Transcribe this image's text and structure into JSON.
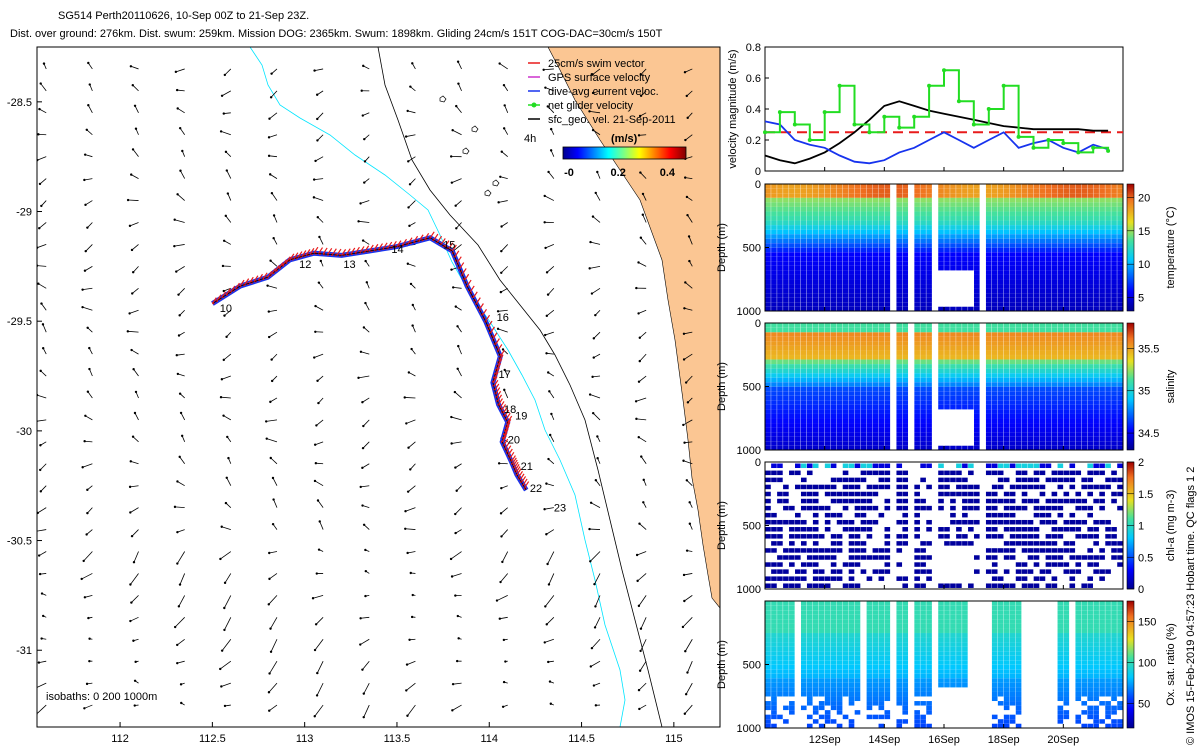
{
  "header": {
    "line1": "SG514 Perth20110626, 10-Sep 00Z to 21-Sep 23Z.",
    "line2": "Dist. over ground: 276km. Dist. swum: 259km. Mission DOG: 2365km. Swum: 1898km. Gliding 24cm/s 151T COG-DAC=30cm/s 150T"
  },
  "footer_vertical": "© IMOS 15-Feb-2019 04:57:23 Hobart time. QC flags 1  2",
  "colors": {
    "land": "#fbc693",
    "isobath_200": "#00e5ff",
    "isobath_1000": "#000000",
    "track_red": "#e81b1b",
    "track_blue": "#1733ee",
    "net_green": "#22dd22",
    "dashed_ref": "#e81b1b"
  },
  "chart_data": [
    {
      "type": "scatter",
      "name": "map",
      "xlim": [
        111.55,
        115.25
      ],
      "ylim": [
        -31.35,
        -28.25
      ],
      "x_ticks": [
        "112",
        "112.5",
        "113",
        "113.5",
        "114",
        "114.5",
        "115"
      ],
      "y_ticks": [
        "-28.5",
        "-29",
        "-29.5",
        "-30",
        "-30.5",
        "-31"
      ],
      "legend": [
        "25cm/s swim vector",
        "GPS surface velocity",
        "dive-avg current veloc.",
        "net glider velocity",
        "sfc_geo. vel. 21-Sep-2011"
      ],
      "legend_colors": [
        "#e81b1b",
        "#cc33cc",
        "#1733ee",
        "#22dd22",
        "#000000"
      ],
      "legend_placement": "top-right",
      "colorbar_title": "(m/s)",
      "colorbar_ticks": [
        "-0",
        "0.2",
        "0.4"
      ],
      "colorbar_range": [
        0,
        0.5
      ],
      "annotation_4h": "4h",
      "isobath_note": "isobaths: 0   200   1000m",
      "track": [
        [
          112.5,
          -29.42
        ],
        [
          112.65,
          -29.34
        ],
        [
          112.8,
          -29.3
        ],
        [
          112.92,
          -29.22
        ],
        [
          113.05,
          -29.19
        ],
        [
          113.2,
          -29.2
        ],
        [
          113.35,
          -29.18
        ],
        [
          113.5,
          -29.16
        ],
        [
          113.68,
          -29.12
        ],
        [
          113.8,
          -29.18
        ],
        [
          113.88,
          -29.34
        ],
        [
          113.98,
          -29.5
        ],
        [
          114.06,
          -29.66
        ],
        [
          114.02,
          -29.78
        ],
        [
          114.05,
          -29.88
        ],
        [
          114.1,
          -29.96
        ],
        [
          114.07,
          -30.05
        ],
        [
          114.12,
          -30.14
        ],
        [
          114.15,
          -30.2
        ],
        [
          114.2,
          -30.27
        ]
      ],
      "day_labels": [
        {
          "text": "10",
          "x": 112.54,
          "y": -29.44
        },
        {
          "text": "12",
          "x": 112.97,
          "y": -29.24
        },
        {
          "text": "13",
          "x": 113.21,
          "y": -29.24
        },
        {
          "text": "14",
          "x": 113.47,
          "y": -29.17
        },
        {
          "text": "15",
          "x": 113.75,
          "y": -29.15
        },
        {
          "text": "16",
          "x": 114.04,
          "y": -29.48
        },
        {
          "text": "17",
          "x": 114.05,
          "y": -29.74
        },
        {
          "text": "18",
          "x": 114.08,
          "y": -29.9
        },
        {
          "text": "19",
          "x": 114.14,
          "y": -29.93
        },
        {
          "text": "20",
          "x": 114.1,
          "y": -30.04
        },
        {
          "text": "21",
          "x": 114.17,
          "y": -30.16
        },
        {
          "text": "22",
          "x": 114.22,
          "y": -30.26
        },
        {
          "text": "23",
          "x": 114.35,
          "y": -30.35
        }
      ]
    },
    {
      "type": "line",
      "name": "velocity",
      "ylabel": "velocity magnitude (m/s)",
      "ylim": [
        0,
        0.8
      ],
      "y_ticks": [
        "0",
        "0.2",
        "0.4",
        "0.6",
        "0.8"
      ],
      "xlim": [
        10,
        22
      ],
      "ref_line": 0.25,
      "series": [
        {
          "name": "",
          "values": [
            0.1,
            0.07,
            0.05,
            0.08,
            0.12,
            0.18,
            0.25,
            0.33,
            0.42,
            0.45,
            0.42,
            0.39,
            0.37,
            0.35,
            0.33,
            0.31,
            0.29,
            0.28,
            0.27,
            0.27,
            0.27,
            0.27,
            0.26,
            0.26
          ]
        },
        {
          "name": "",
          "values": [
            0.32,
            0.3,
            0.2,
            0.17,
            0.15,
            0.1,
            0.06,
            0.05,
            0.07,
            0.12,
            0.15,
            0.2,
            0.25,
            0.2,
            0.15,
            0.2,
            0.25,
            0.15,
            0.18,
            0.2,
            0.15,
            0.12,
            0.17,
            0.14
          ]
        },
        {
          "name": "",
          "values": [
            0.25,
            0.38,
            0.3,
            0.2,
            0.38,
            0.55,
            0.3,
            0.25,
            0.35,
            0.28,
            0.35,
            0.55,
            0.65,
            0.45,
            0.3,
            0.4,
            0.55,
            0.22,
            0.15,
            0.2,
            0.18,
            0.12,
            0.15,
            0.13
          ]
        }
      ],
      "x_values": [
        10,
        10.5,
        11,
        11.5,
        12,
        12.5,
        13,
        13.5,
        14,
        14.5,
        15,
        15.5,
        16,
        16.5,
        17,
        17.5,
        18,
        18.5,
        19,
        19.5,
        20,
        20.5,
        21,
        21.5
      ]
    },
    {
      "type": "heatmap",
      "name": "temperature",
      "ylabel": "Depth (m)",
      "cbar_label": "temperature (°C)",
      "ylim": [
        0,
        1000
      ],
      "y_ticks": [
        "0",
        "500",
        "1000"
      ],
      "cbar_ticks": [
        "5",
        "10",
        "15",
        "20"
      ],
      "cbar_range": [
        3,
        22
      ]
    },
    {
      "type": "heatmap",
      "name": "salinity",
      "ylabel": "Depth (m)",
      "cbar_label": "salinity",
      "ylim": [
        0,
        1000
      ],
      "y_ticks": [
        "0",
        "500",
        "1000"
      ],
      "cbar_ticks": [
        "34.5",
        "35",
        "35.5"
      ],
      "cbar_range": [
        34.3,
        35.8
      ]
    },
    {
      "type": "scatter",
      "name": "chla",
      "ylabel": "Depth (m)",
      "cbar_label": "chl-a (mg m-3)",
      "ylim": [
        0,
        1000
      ],
      "y_ticks": [
        "0",
        "500",
        "1000"
      ],
      "cbar_ticks": [
        "0",
        "0.5",
        "1",
        "1.5",
        "2"
      ],
      "cbar_range": [
        0,
        2
      ]
    },
    {
      "type": "scatter",
      "name": "oxygen",
      "ylabel": "Depth (m)",
      "cbar_label": "Ox. sat. ratio (%)",
      "ylim": [
        0,
        1000
      ],
      "y_ticks": [
        "500",
        "1000"
      ],
      "cbar_ticks": [
        "50",
        "100",
        "150"
      ],
      "cbar_range": [
        20,
        175
      ],
      "x_ticks": [
        "12Sep",
        "14Sep",
        "16Sep",
        "18Sep",
        "20Sep"
      ],
      "x_tick_days": [
        12,
        14,
        16,
        18,
        20
      ]
    }
  ]
}
